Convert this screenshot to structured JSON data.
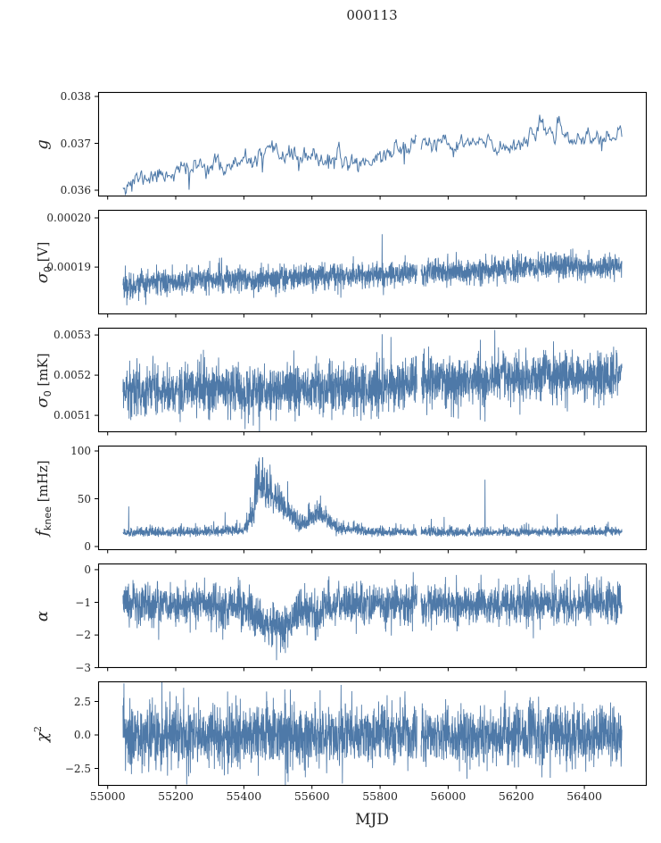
{
  "title": "000113",
  "colors": {
    "line": "#4e79a8",
    "axis": "#000000",
    "background": "#ffffff",
    "text": "#262626"
  },
  "x_axis": {
    "label": "MJD",
    "lim": [
      54972,
      56583
    ],
    "ticks": [
      {
        "v": 55000,
        "label": "55000"
      },
      {
        "v": 55200,
        "label": "55200"
      },
      {
        "v": 55400,
        "label": "55400"
      },
      {
        "v": 55600,
        "label": "55600"
      },
      {
        "v": 55800,
        "label": "55800"
      },
      {
        "v": 56000,
        "label": "56000"
      },
      {
        "v": 56200,
        "label": "56200"
      },
      {
        "v": 56400,
        "label": "56400"
      }
    ],
    "data_start": 55045,
    "data_end": 56510,
    "gap": [
      55908,
      55920
    ]
  },
  "chart_data": [
    {
      "type": "line",
      "id": "g",
      "ylabel": {
        "main": "g",
        "sub": "",
        "sup": "",
        "unit": ""
      },
      "ylim": [
        0.035867,
        0.038095
      ],
      "yticks": [
        {
          "v": 0.036,
          "label": "0.036"
        },
        {
          "v": 0.037,
          "label": "0.037"
        },
        {
          "v": 0.038,
          "label": "0.038"
        }
      ],
      "n": 620,
      "seed": 11,
      "smooth": 0.55,
      "skew": 0,
      "lw": 1.0,
      "trend": [
        [
          55045,
          0.03615
        ],
        [
          55100,
          0.03625
        ],
        [
          55200,
          0.0364
        ],
        [
          55300,
          0.03655
        ],
        [
          55350,
          0.0365
        ],
        [
          55420,
          0.0366
        ],
        [
          55450,
          0.0367
        ],
        [
          55520,
          0.0368
        ],
        [
          55560,
          0.0367
        ],
        [
          55600,
          0.03665
        ],
        [
          55650,
          0.0367
        ],
        [
          55700,
          0.0366
        ],
        [
          55750,
          0.0366
        ],
        [
          55800,
          0.0367
        ],
        [
          55850,
          0.0369
        ],
        [
          55900,
          0.037
        ],
        [
          55950,
          0.037
        ],
        [
          56000,
          0.0369
        ],
        [
          56050,
          0.037
        ],
        [
          56100,
          0.037
        ],
        [
          56150,
          0.0369
        ],
        [
          56200,
          0.037
        ],
        [
          56250,
          0.0372
        ],
        [
          56300,
          0.0373
        ],
        [
          56350,
          0.0371
        ],
        [
          56400,
          0.0371
        ],
        [
          56450,
          0.0371
        ],
        [
          56510,
          0.0372
        ]
      ],
      "noise": [
        [
          55045,
          7e-05
        ],
        [
          56510,
          7e-05
        ]
      ],
      "spikes": [
        [
          55072,
          0.03597
        ],
        [
          55238,
          0.03601
        ],
        [
          55455,
          0.03638
        ],
        [
          55562,
          0.03641
        ],
        [
          55648,
          0.03646
        ],
        [
          55872,
          0.03655
        ]
      ]
    },
    {
      "type": "line",
      "id": "sigma0_V",
      "ylabel": {
        "main": "σ",
        "sub": "0",
        "sup": "",
        "unit": " [V]"
      },
      "ylim": [
        0.0001804,
        0.00020164
      ],
      "yticks": [
        {
          "v": 0.00019,
          "label": "0.00019"
        },
        {
          "v": 0.0002,
          "label": "0.00020"
        }
      ],
      "n": 2600,
      "seed": 22,
      "smooth": 0,
      "skew": 0,
      "lw": 0.9,
      "trend": [
        [
          55045,
          0.0001862
        ],
        [
          55100,
          0.0001866
        ],
        [
          55150,
          0.0001869
        ],
        [
          55250,
          0.0001873
        ],
        [
          55320,
          0.0001876
        ],
        [
          55400,
          0.0001877
        ],
        [
          55450,
          0.0001873
        ],
        [
          55480,
          0.0001875
        ],
        [
          55550,
          0.0001879
        ],
        [
          55600,
          0.0001881
        ],
        [
          55650,
          0.0001882
        ],
        [
          55700,
          0.0001883
        ],
        [
          55780,
          0.0001884
        ],
        [
          55850,
          0.0001886
        ],
        [
          55905,
          0.0001888
        ],
        [
          55920,
          0.000189
        ],
        [
          56000,
          0.000189
        ],
        [
          56080,
          0.0001892
        ],
        [
          56150,
          0.0001895
        ],
        [
          56220,
          0.0001899
        ],
        [
          56270,
          0.0001902
        ],
        [
          56320,
          0.0001902
        ],
        [
          56380,
          0.00019
        ],
        [
          56440,
          0.0001901
        ],
        [
          56510,
          0.0001901
        ]
      ],
      "noise": [
        [
          55045,
          1.3e-06
        ],
        [
          56510,
          1.3e-06
        ]
      ],
      "spikes": [
        [
          55806,
          0.0001967
        ],
        [
          55810,
          0.0001843
        ]
      ]
    },
    {
      "type": "line",
      "id": "sigma0_mK",
      "ylabel": {
        "main": "σ",
        "sub": "0",
        "sup": "",
        "unit": " [mK]"
      },
      "ylim": [
        0.005058,
        0.005318
      ],
      "yticks": [
        {
          "v": 0.0051,
          "label": "0.0051"
        },
        {
          "v": 0.0052,
          "label": "0.0052"
        },
        {
          "v": 0.0053,
          "label": "0.0053"
        }
      ],
      "n": 2600,
      "seed": 33,
      "smooth": 0,
      "skew": 0,
      "lw": 0.9,
      "trend": [
        [
          55045,
          0.00516
        ],
        [
          55150,
          0.005162
        ],
        [
          55250,
          0.005163
        ],
        [
          55320,
          0.005166
        ],
        [
          55380,
          0.005162
        ],
        [
          55450,
          0.005158
        ],
        [
          55520,
          0.00516
        ],
        [
          55600,
          0.005167
        ],
        [
          55650,
          0.005172
        ],
        [
          55720,
          0.00517
        ],
        [
          55810,
          0.005175
        ],
        [
          55900,
          0.005182
        ],
        [
          55960,
          0.00518
        ],
        [
          56030,
          0.005182
        ],
        [
          56100,
          0.005188
        ],
        [
          56160,
          0.005198
        ],
        [
          56220,
          0.005192
        ],
        [
          56280,
          0.005196
        ],
        [
          56340,
          0.0052
        ],
        [
          56420,
          0.005198
        ],
        [
          56510,
          0.005203
        ]
      ],
      "noise": [
        [
          55045,
          3.1e-05
        ],
        [
          56510,
          3.1e-05
        ]
      ],
      "spikes": [
        [
          55806,
          0.005302
        ],
        [
          55832,
          0.005295
        ],
        [
          55495,
          0.005086
        ]
      ]
    },
    {
      "type": "line",
      "id": "fknee",
      "ylabel": {
        "main": "f",
        "sub": "knee",
        "sup": "",
        "unit": " [mHz]"
      },
      "ylim": [
        -3.7,
        105.6
      ],
      "yticks": [
        {
          "v": 0,
          "label": "0"
        },
        {
          "v": 50,
          "label": "50"
        },
        {
          "v": 100,
          "label": "100"
        }
      ],
      "n": 2600,
      "seed": 44,
      "smooth": 0,
      "skew": 1.0,
      "clipmax": 93,
      "lw": 0.9,
      "trend": [
        [
          55045,
          12
        ],
        [
          55200,
          12
        ],
        [
          55320,
          13
        ],
        [
          55400,
          14
        ],
        [
          55412,
          16
        ],
        [
          55430,
          30
        ],
        [
          55444,
          50
        ],
        [
          55460,
          46
        ],
        [
          55480,
          42
        ],
        [
          55500,
          38
        ],
        [
          55515,
          33
        ],
        [
          55540,
          25
        ],
        [
          55560,
          20
        ],
        [
          55575,
          17
        ],
        [
          55590,
          22
        ],
        [
          55605,
          27
        ],
        [
          55620,
          28
        ],
        [
          55640,
          24
        ],
        [
          55660,
          18
        ],
        [
          55680,
          15
        ],
        [
          55720,
          15
        ],
        [
          55760,
          13
        ],
        [
          55900,
          12
        ],
        [
          56510,
          13
        ]
      ],
      "noise": [
        [
          55045,
          3.5
        ],
        [
          55400,
          4
        ],
        [
          55425,
          14
        ],
        [
          55444,
          20
        ],
        [
          55470,
          18
        ],
        [
          55500,
          15
        ],
        [
          55520,
          12
        ],
        [
          55560,
          7
        ],
        [
          55590,
          9
        ],
        [
          55620,
          9
        ],
        [
          55650,
          6
        ],
        [
          55680,
          5
        ],
        [
          55720,
          4.5
        ],
        [
          55800,
          3.5
        ],
        [
          56510,
          3.5
        ]
      ],
      "spikes": [
        [
          55062,
          42
        ],
        [
          55345,
          36
        ],
        [
          55380,
          28
        ],
        [
          55592,
          46
        ],
        [
          55950,
          29
        ],
        [
          55988,
          31
        ],
        [
          56108,
          70
        ],
        [
          56230,
          25
        ],
        [
          56320,
          34
        ],
        [
          56470,
          26
        ]
      ]
    },
    {
      "type": "line",
      "id": "alpha",
      "ylabel": {
        "main": "α",
        "sub": "",
        "sup": "",
        "unit": ""
      },
      "ylim": [
        -3.01,
        0.19
      ],
      "yticks": [
        {
          "v": 0,
          "label": "0"
        },
        {
          "v": -1,
          "label": "−1"
        },
        {
          "v": -2,
          "label": "−2"
        },
        {
          "v": -3,
          "label": "−3"
        }
      ],
      "n": 2600,
      "seed": 55,
      "smooth": 0,
      "skew": 0,
      "lw": 0.9,
      "trend": [
        [
          55045,
          -1.05
        ],
        [
          55280,
          -1.05
        ],
        [
          55320,
          -1.2
        ],
        [
          55360,
          -1.15
        ],
        [
          55380,
          -1.05
        ],
        [
          55420,
          -1.3
        ],
        [
          55450,
          -1.65
        ],
        [
          55480,
          -1.7
        ],
        [
          55520,
          -1.75
        ],
        [
          55545,
          -1.45
        ],
        [
          55560,
          -1.3
        ],
        [
          55580,
          -1.15
        ],
        [
          55600,
          -1.35
        ],
        [
          55620,
          -1.5
        ],
        [
          55640,
          -1.15
        ],
        [
          55660,
          -1.05
        ],
        [
          56510,
          -1.05
        ]
      ],
      "noise": [
        [
          55045,
          0.3
        ],
        [
          55420,
          0.33
        ],
        [
          55560,
          0.33
        ],
        [
          55660,
          0.3
        ],
        [
          56510,
          0.3
        ]
      ],
      "spikes": [
        [
          55150,
          -2.15
        ],
        [
          56250,
          -2.1
        ]
      ]
    },
    {
      "type": "line",
      "id": "chi2",
      "ylabel": {
        "main": "χ",
        "sub": "",
        "sup": "2",
        "unit": ""
      },
      "ylim": [
        -3.8,
        4.0
      ],
      "yticks": [
        {
          "v": 2.5,
          "label": "2.5"
        },
        {
          "v": 0,
          "label": "0.0"
        },
        {
          "v": -2.5,
          "label": "−2.5"
        }
      ],
      "n": 2600,
      "seed": 66,
      "smooth": 0,
      "skew": 0,
      "lw": 0.9,
      "trend": [
        [
          55045,
          0
        ],
        [
          56510,
          0
        ]
      ],
      "noise": [
        [
          55045,
          1.12
        ],
        [
          56510,
          1.12
        ]
      ],
      "spikes": [
        [
          55232,
          -3.7
        ],
        [
          55520,
          3.4
        ],
        [
          56300,
          -3.2
        ]
      ]
    }
  ]
}
